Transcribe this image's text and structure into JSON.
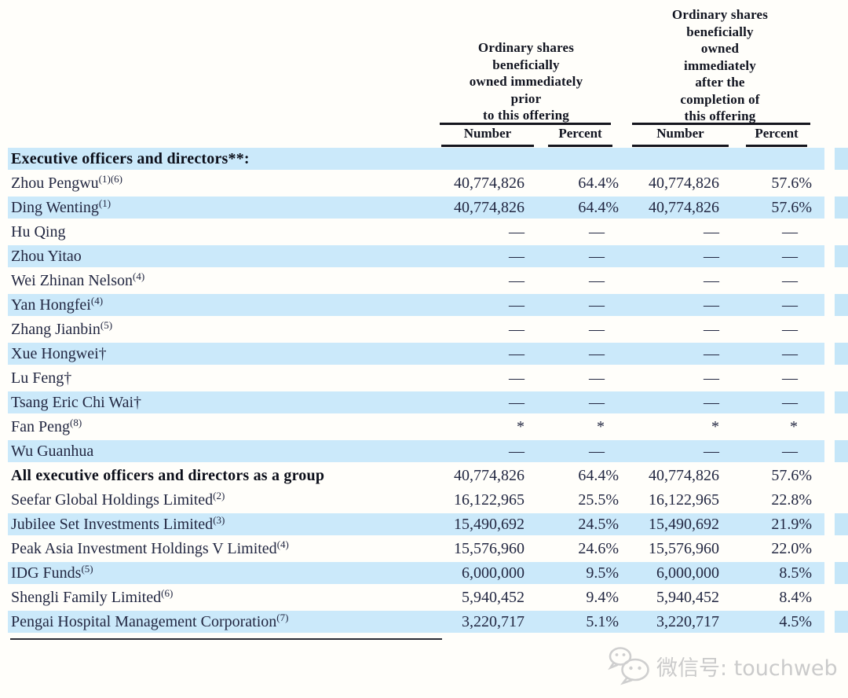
{
  "colors": {
    "row_stripe": "#cbe9fa",
    "row_stripe_edge": "#c5e6f8",
    "text": "#222741",
    "heading_text": "#10131f",
    "rule": "#15151d",
    "watermark": "#cbcbcb",
    "background": "#fffefa"
  },
  "header": {
    "group_prior": "Ordinary shares\nbeneficially\nowned immediately\nprior\nto this offering",
    "group_after": "Ordinary shares\nbeneficially\nowned\nimmediately\nafter the\ncompletion of\nthis offering",
    "col_number": "Number",
    "col_percent": "Percent"
  },
  "table": {
    "columns": [
      "Number",
      "Percent",
      "Number",
      "Percent"
    ],
    "rows": [
      {
        "label": "Executive officers and directors**:",
        "sup": "",
        "bold": true,
        "shaded": true,
        "values": [
          "",
          "",
          "",
          ""
        ]
      },
      {
        "label": "Zhou Pengwu",
        "sup": "(1)(6)",
        "bold": false,
        "shaded": false,
        "values": [
          "40,774,826",
          "64.4%",
          "40,774,826",
          "57.6%"
        ]
      },
      {
        "label": "Ding Wenting",
        "sup": "(1)",
        "bold": false,
        "shaded": true,
        "values": [
          "40,774,826",
          "64.4%",
          "40,774,826",
          "57.6%"
        ]
      },
      {
        "label": "Hu Qing",
        "sup": "",
        "bold": false,
        "shaded": false,
        "values": [
          "—",
          "—",
          "—",
          "—"
        ]
      },
      {
        "label": "Zhou Yitao",
        "sup": "",
        "bold": false,
        "shaded": true,
        "values": [
          "—",
          "—",
          "—",
          "—"
        ]
      },
      {
        "label": "Wei Zhinan Nelson",
        "sup": "(4)",
        "bold": false,
        "shaded": false,
        "values": [
          "—",
          "—",
          "—",
          "—"
        ]
      },
      {
        "label": "Yan Hongfei",
        "sup": "(4)",
        "bold": false,
        "shaded": true,
        "values": [
          "—",
          "—",
          "—",
          "—"
        ]
      },
      {
        "label": "Zhang Jianbin",
        "sup": "(5)",
        "bold": false,
        "shaded": false,
        "values": [
          "—",
          "—",
          "—",
          "—"
        ]
      },
      {
        "label": "Xue Hongwei†",
        "sup": "",
        "bold": false,
        "shaded": true,
        "values": [
          "—",
          "—",
          "—",
          "—"
        ]
      },
      {
        "label": "Lu Feng†",
        "sup": "",
        "bold": false,
        "shaded": false,
        "values": [
          "—",
          "—",
          "—",
          "—"
        ]
      },
      {
        "label": "Tsang Eric Chi Wai†",
        "sup": "",
        "bold": false,
        "shaded": true,
        "values": [
          "—",
          "—",
          "—",
          "—"
        ]
      },
      {
        "label": "Fan Peng",
        "sup": "(8)",
        "bold": false,
        "shaded": false,
        "values": [
          "*",
          "*",
          "*",
          "*"
        ]
      },
      {
        "label": "Wu Guanhua",
        "sup": "",
        "bold": false,
        "shaded": true,
        "values": [
          "—",
          "—",
          "—",
          "—"
        ]
      },
      {
        "label": "All executive officers and directors as a group",
        "sup": "",
        "bold": true,
        "shaded": false,
        "values": [
          "40,774,826",
          "64.4%",
          "40,774,826",
          "57.6%"
        ]
      },
      {
        "label": "Seefar Global Holdings Limited",
        "sup": "(2)",
        "bold": false,
        "shaded": false,
        "values": [
          "16,122,965",
          "25.5%",
          "16,122,965",
          "22.8%"
        ]
      },
      {
        "label": "Jubilee Set Investments Limited",
        "sup": "(3)",
        "bold": false,
        "shaded": true,
        "values": [
          "15,490,692",
          "24.5%",
          "15,490,692",
          "21.9%"
        ]
      },
      {
        "label": "Peak Asia Investment Holdings V Limited",
        "sup": "(4)",
        "bold": false,
        "shaded": false,
        "values": [
          "15,576,960",
          "24.6%",
          "15,576,960",
          "22.0%"
        ]
      },
      {
        "label": "IDG Funds",
        "sup": "(5)",
        "bold": false,
        "shaded": true,
        "values": [
          "6,000,000",
          "9.5%",
          "6,000,000",
          "8.5%"
        ]
      },
      {
        "label": "Shengli Family Limited",
        "sup": "(6)",
        "bold": false,
        "shaded": false,
        "values": [
          "5,940,452",
          "9.4%",
          "5,940,452",
          "8.4%"
        ]
      },
      {
        "label": "Pengai Hospital Management Corporation",
        "sup": "(7)",
        "bold": false,
        "shaded": true,
        "values": [
          "3,220,717",
          "5.1%",
          "3,220,717",
          "4.5%"
        ]
      }
    ]
  },
  "watermark": {
    "text": "微信号: touchweb"
  }
}
